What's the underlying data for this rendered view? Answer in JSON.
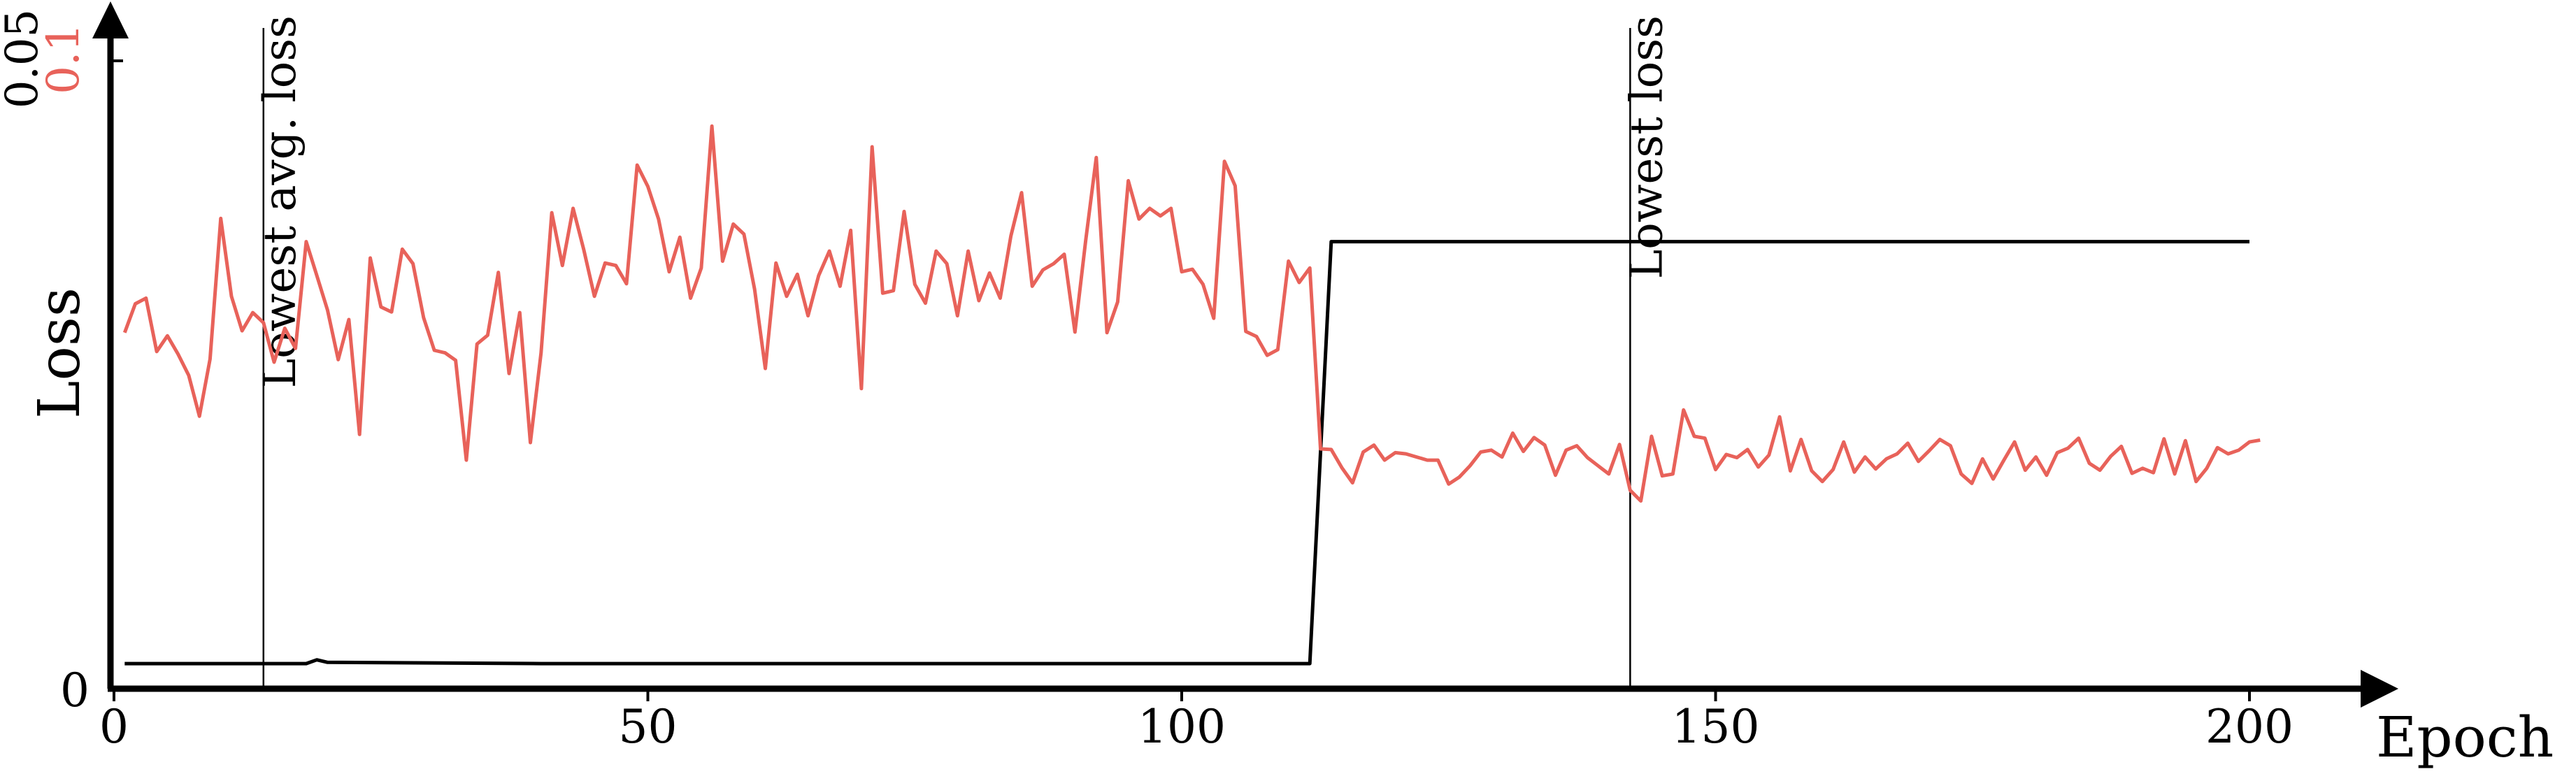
{
  "chart_data": {
    "type": "line",
    "xlabel": "Epoch",
    "ylabel": "Loss",
    "xlim": [
      0,
      200
    ],
    "x_ticks": [
      0,
      50,
      100,
      150,
      200
    ],
    "y_ticks": [
      0,
      0.05
    ],
    "secondary_y_ticks": [
      0.1
    ],
    "grid": false,
    "legend": "none",
    "colors": {
      "series_black": "#000000",
      "series_red": "#e8625a",
      "axes": "#000000"
    },
    "annotations": [
      {
        "label": "Lowest avg. loss",
        "x": 14
      },
      {
        "label": "Lowest loss",
        "x": 142
      }
    ],
    "series": [
      {
        "axis": "primary",
        "color": "#000000",
        "x": [
          1,
          10,
          17,
          18,
          19,
          20,
          40,
          60,
          80,
          100,
          112,
          114,
          200
        ],
        "values": [
          0.002,
          0.002,
          0.002,
          0.002,
          0.0023,
          0.0021,
          0.002,
          0.002,
          0.002,
          0.002,
          0.002,
          0.0356,
          0.0356
        ]
      },
      {
        "axis": "secondary",
        "color": "#e8625a",
        "x_start": 1,
        "x_step": 1,
        "values": [
          0.0567,
          0.0613,
          0.0622,
          0.0537,
          0.0562,
          0.0533,
          0.0499,
          0.0434,
          0.0525,
          0.0749,
          0.0625,
          0.057,
          0.0599,
          0.0583,
          0.052,
          0.0574,
          0.0542,
          0.0712,
          0.0658,
          0.0603,
          0.0524,
          0.0588,
          0.0405,
          0.0686,
          0.0608,
          0.06,
          0.07,
          0.0677,
          0.0591,
          0.0539,
          0.0535,
          0.0523,
          0.0364,
          0.0549,
          0.0563,
          0.0663,
          0.0502,
          0.0599,
          0.0392,
          0.0535,
          0.0758,
          0.0674,
          0.0765,
          0.0699,
          0.0625,
          0.0678,
          0.0674,
          0.0645,
          0.0834,
          0.08,
          0.0748,
          0.0664,
          0.0719,
          0.0622,
          0.067,
          0.0896,
          0.0681,
          0.074,
          0.0724,
          0.0636,
          0.051,
          0.0678,
          0.0625,
          0.066,
          0.0594,
          0.0658,
          0.0697,
          0.0641,
          0.073,
          0.0478,
          0.0863,
          0.063,
          0.0634,
          0.076,
          0.0644,
          0.0614,
          0.0697,
          0.0677,
          0.0594,
          0.0697,
          0.0618,
          0.0662,
          0.0622,
          0.0721,
          0.079,
          0.0641,
          0.0667,
          0.0677,
          0.0692,
          0.0568,
          0.0713,
          0.0846,
          0.0567,
          0.0616,
          0.0809,
          0.0748,
          0.0765,
          0.0753,
          0.0765,
          0.0664,
          0.0668,
          0.0644,
          0.059,
          0.084,
          0.0801,
          0.0569,
          0.0561,
          0.0531,
          0.054,
          0.0681,
          0.0647,
          0.067,
          0.0382,
          0.0381,
          0.0352,
          0.0328,
          0.0377,
          0.0388,
          0.0364,
          0.0376,
          0.0374,
          0.0369,
          0.0364,
          0.0364,
          0.0326,
          0.0337,
          0.0355,
          0.0377,
          0.038,
          0.0369,
          0.0407,
          0.0378,
          0.04,
          0.0388,
          0.034,
          0.038,
          0.0387,
          0.0368,
          0.0355,
          0.0342,
          0.0389,
          0.0316,
          0.0299,
          0.0402,
          0.0339,
          0.0342,
          0.0444,
          0.0402,
          0.0399,
          0.0349,
          0.0373,
          0.0368,
          0.0381,
          0.0353,
          0.0372,
          0.0433,
          0.0347,
          0.0397,
          0.0347,
          0.033,
          0.0349,
          0.0393,
          0.0345,
          0.0369,
          0.035,
          0.0366,
          0.0374,
          0.0391,
          0.0362,
          0.0379,
          0.0397,
          0.0387,
          0.0342,
          0.0327,
          0.0366,
          0.0334,
          0.0364,
          0.0393,
          0.0348,
          0.0369,
          0.034,
          0.0376,
          0.0383,
          0.0399,
          0.0359,
          0.0348,
          0.037,
          0.0386,
          0.0343,
          0.0351,
          0.0344,
          0.0398,
          0.0342,
          0.0395,
          0.033,
          0.0351,
          0.0384,
          0.0374,
          0.038,
          0.0393,
          0.0396
        ]
      }
    ]
  }
}
